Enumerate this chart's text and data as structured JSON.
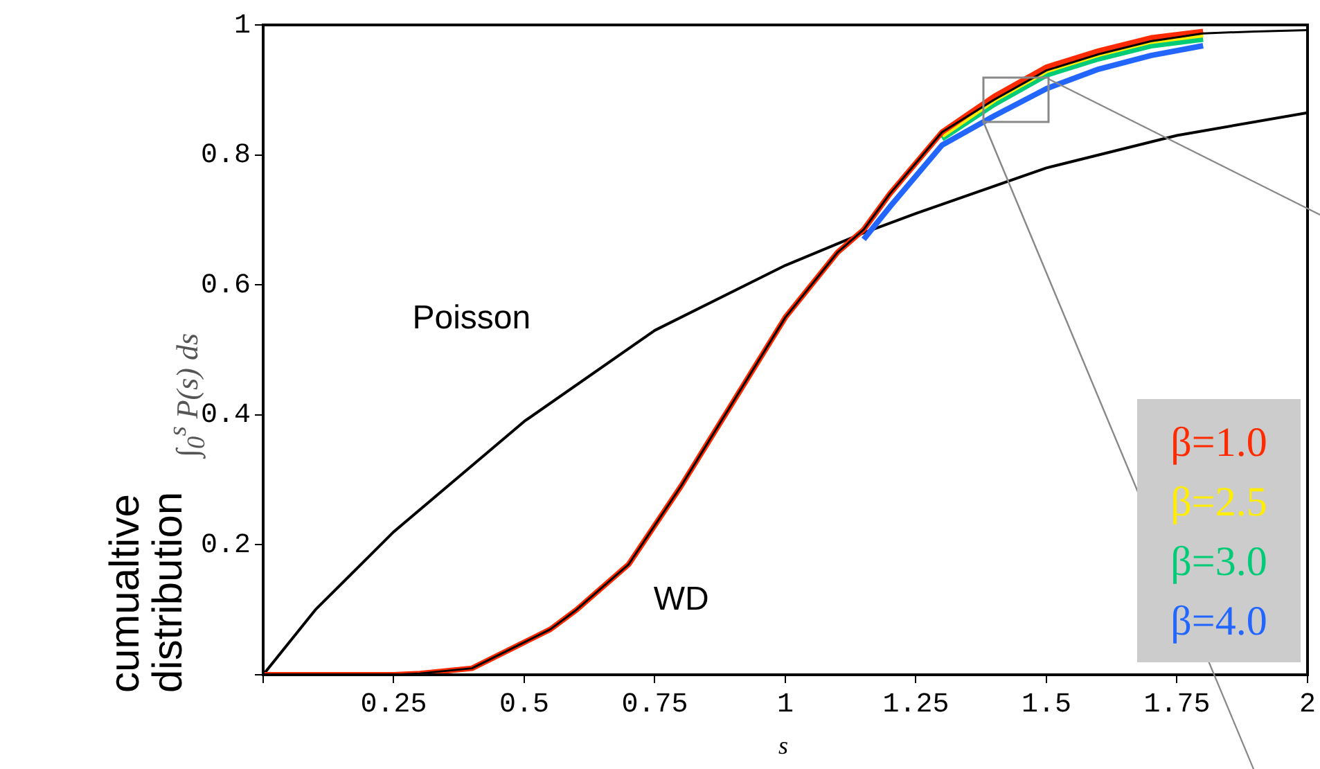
{
  "chart_data": {
    "type": "line",
    "xlabel": "s",
    "ylabel": "cumualtive distribution",
    "annotations": [
      "∫$_{0}$$^{s}$ P(s) ds"
    ],
    "xlim": [
      0,
      2
    ],
    "ylim": [
      0,
      1
    ],
    "xticks": [
      {
        "value": 0,
        "label": null
      },
      0.25,
      0.5,
      0.75,
      1,
      1.25,
      1.5,
      1.75,
      2
    ],
    "yticks": [
      {
        "value": 0,
        "label": null
      },
      0.2,
      0.4,
      0.6,
      0.8,
      1
    ],
    "grid": false,
    "legend": "bottom right",
    "marker": "none",
    "line_style": "solid",
    "series": [
      {
        "name": "Poisson",
        "color": "#000000",
        "x": [
          0,
          0.1,
          0.25,
          0.5,
          0.75,
          1,
          1.15,
          1.25,
          1.5,
          1.75,
          2
        ],
        "values": [
          0,
          0.1,
          0.22,
          0.39,
          0.53,
          0.63,
          0.68,
          0.71,
          0.78,
          0.83,
          0.865
        ]
      },
      {
        "name": "WD",
        "color": "#000000",
        "x": [
          0,
          0.25,
          0.3,
          0.4,
          0.45,
          0.5,
          0.55,
          0.6,
          0.7,
          0.8,
          0.9,
          1.0,
          1.1,
          1.15,
          1.2,
          1.3,
          1.4,
          1.5,
          1.6,
          1.7,
          1.8,
          1.9,
          2.0
        ],
        "values": [
          0,
          0,
          0.002,
          0.01,
          0.03,
          0.05,
          0.07,
          0.1,
          0.17,
          0.29,
          0.42,
          0.55,
          0.65,
          0.685,
          0.74,
          0.835,
          0.885,
          0.93,
          0.955,
          0.975,
          0.987,
          0.99,
          0.992
        ]
      },
      {
        "name": "β=1.0",
        "color": "#ff2a00",
        "x": [
          0,
          0.25,
          0.3,
          0.4,
          0.45,
          0.5,
          0.55,
          0.6,
          0.7,
          0.8,
          0.9,
          1.0,
          1.1,
          1.15,
          1.2,
          1.3,
          1.4,
          1.5,
          1.6,
          1.7,
          1.8
        ],
        "values": [
          0,
          0,
          0.002,
          0.01,
          0.03,
          0.05,
          0.07,
          0.1,
          0.17,
          0.29,
          0.42,
          0.55,
          0.65,
          0.685,
          0.74,
          0.835,
          0.89,
          0.935,
          0.96,
          0.98,
          0.99
        ]
      },
      {
        "name": "β=2.5",
        "color": "#ffee00",
        "x": [
          1.3,
          1.4,
          1.5,
          1.6,
          1.7,
          1.8
        ],
        "values": [
          0.83,
          0.885,
          0.93,
          0.955,
          0.975,
          0.985
        ]
      },
      {
        "name": "β=3.0",
        "color": "#00cc77",
        "x": [
          1.3,
          1.4,
          1.5,
          1.6,
          1.7,
          1.8
        ],
        "values": [
          0.825,
          0.878,
          0.923,
          0.948,
          0.968,
          0.978
        ]
      },
      {
        "name": "β=4.0",
        "color": "#2266ff",
        "x": [
          1.15,
          1.2,
          1.3,
          1.4,
          1.5,
          1.6,
          1.7,
          1.8
        ],
        "values": [
          0.67,
          0.72,
          0.815,
          0.86,
          0.902,
          0.932,
          0.953,
          0.968
        ]
      }
    ]
  }
}
